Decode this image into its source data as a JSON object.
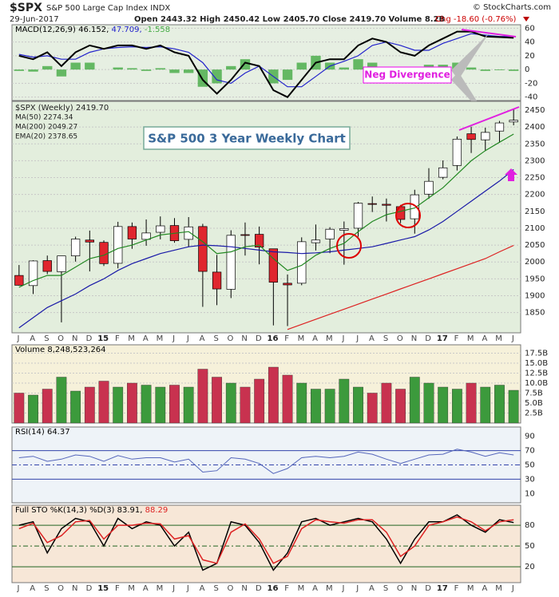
{
  "header": {
    "symbol": "$SPX",
    "name": "S&P 500 Large Cap Index INDX",
    "source": "© StockCharts.com",
    "date": "29-Jun-2017",
    "quote": "Open 2443.32 High 2450.42 Low 2405.70 Close 2419.70 Volume 8.2B",
    "change": "Chg -18.60 (-0.76%)"
  },
  "chart_data": [
    {
      "type": "macd",
      "annotation": "Neg Divergence",
      "background": "#e6efe2",
      "legend": [
        {
          "text": "MACD(12,26,9) 46.152,",
          "color": "#000000"
        },
        {
          "text": "47.709,",
          "color": "#2222cc"
        },
        {
          "text": "-1.558",
          "color": "#44aa44"
        }
      ],
      "ylim": [
        -45,
        65
      ],
      "yticks": [
        60,
        40,
        20,
        0,
        -20,
        -40
      ],
      "grid": true,
      "series": [
        {
          "color": "#000000",
          "values": [
            20,
            15,
            25,
            5,
            25,
            35,
            30,
            35,
            35,
            30,
            35,
            25,
            20,
            -15,
            -35,
            -15,
            10,
            5,
            -30,
            -40,
            -15,
            10,
            15,
            15,
            35,
            45,
            40,
            25,
            20,
            35,
            45,
            55,
            55,
            48,
            47,
            46
          ]
        },
        {
          "color": "#2222cc",
          "values": [
            22,
            18,
            20,
            15,
            15,
            25,
            30,
            32,
            33,
            32,
            33,
            30,
            25,
            10,
            -15,
            -20,
            -5,
            5,
            -10,
            -25,
            -25,
            -10,
            5,
            12,
            20,
            35,
            40,
            35,
            28,
            28,
            38,
            45,
            52,
            50,
            48,
            48
          ]
        },
        {
          "color": "#44aa44",
          "values": [
            -2,
            -3,
            5,
            -10,
            10,
            10,
            0,
            3,
            2,
            -2,
            2,
            -5,
            -5,
            -25,
            -20,
            5,
            15,
            0,
            -20,
            -15,
            10,
            20,
            10,
            3,
            15,
            10,
            0,
            -10,
            -8,
            7,
            7,
            10,
            3,
            -2,
            -1,
            -2
          ]
        }
      ]
    },
    {
      "type": "candlestick",
      "title": "S&P 500 3 Year Weekly Chart",
      "label": "$SPX (Weekly) 2419.70",
      "background": "#e3eedd",
      "up_color": "#ffffff",
      "down_color": "#e0262e",
      "categories": [
        "J",
        "A",
        "S",
        "O",
        "N",
        "D",
        "15",
        "F",
        "M",
        "A",
        "M",
        "J",
        "J",
        "A",
        "S",
        "O",
        "N",
        "D",
        "16",
        "F",
        "M",
        "A",
        "M",
        "J",
        "J",
        "A",
        "S",
        "O",
        "N",
        "D",
        "17",
        "F",
        "M",
        "A",
        "M",
        "J"
      ],
      "ylim": [
        1790,
        2476
      ],
      "yticks": [
        2450,
        2400,
        2350,
        2300,
        2250,
        2200,
        2150,
        2100,
        2050,
        2000,
        1950,
        1900,
        1850
      ],
      "grid": true,
      "open": [
        1960,
        1930,
        2004,
        1971,
        2018,
        2065,
        2058,
        1996,
        2105,
        2067,
        2088,
        2108,
        2067,
        2105,
        1970,
        1919,
        2081,
        2082,
        2039,
        1937,
        1937,
        2057,
        2068,
        2094,
        2100,
        2173,
        2171,
        2164,
        2128,
        2201,
        2251,
        2286,
        2380,
        2362,
        2388,
        2415
      ],
      "high": [
        1991,
        2005,
        2019,
        2018,
        2075,
        2093,
        2064,
        2119,
        2117,
        2126,
        2135,
        2130,
        2133,
        2113,
        2021,
        2094,
        2117,
        2105,
        2039,
        1963,
        2073,
        2111,
        2103,
        2120,
        2178,
        2194,
        2188,
        2169,
        2214,
        2278,
        2301,
        2372,
        2401,
        2398,
        2418,
        2454
      ],
      "low": [
        1930,
        1905,
        1964,
        1821,
        2001,
        1972,
        1988,
        1981,
        2039,
        2048,
        2067,
        2057,
        2044,
        1867,
        1872,
        1893,
        2019,
        1993,
        1812,
        1810,
        1931,
        2034,
        2026,
        1992,
        2075,
        2148,
        2120,
        2115,
        2084,
        2187,
        2245,
        2271,
        2323,
        2329,
        2353,
        2405
      ],
      "close": [
        1931,
        2003,
        1972,
        2018,
        2068,
        2059,
        1995,
        2105,
        2068,
        2086,
        2107,
        2063,
        2104,
        1972,
        1920,
        2079,
        2080,
        2044,
        1940,
        1932,
        2060,
        2065,
        2097,
        2099,
        2174,
        2171,
        2168,
        2126,
        2199,
        2239,
        2279,
        2364,
        2363,
        2384,
        2412,
        2420
      ],
      "series": [
        {
          "name": "MA(50) 2274.34",
          "color": "#1a1aa8",
          "values": [
            1805,
            1835,
            1865,
            1885,
            1905,
            1930,
            1950,
            1975,
            1995,
            2010,
            2025,
            2035,
            2045,
            2050,
            2048,
            2045,
            2040,
            2035,
            2030,
            2028,
            2025,
            2027,
            2030,
            2035,
            2040,
            2045,
            2055,
            2065,
            2075,
            2095,
            2120,
            2150,
            2180,
            2210,
            2240,
            2274
          ]
        },
        {
          "name": "MA(200) 2049.27",
          "color": "#dd2222",
          "values": [
            null,
            null,
            null,
            null,
            null,
            null,
            null,
            null,
            null,
            null,
            null,
            null,
            null,
            null,
            null,
            null,
            null,
            null,
            null,
            1800,
            1815,
            1830,
            1845,
            1860,
            1875,
            1890,
            1905,
            1920,
            1935,
            1950,
            1965,
            1980,
            1995,
            2010,
            2030,
            2049
          ]
        },
        {
          "name": "EMA(20) 2378.65",
          "color": "#228822",
          "values": [
            1925,
            1945,
            1960,
            1960,
            1985,
            2010,
            2020,
            2040,
            2050,
            2065,
            2080,
            2085,
            2090,
            2060,
            2025,
            2030,
            2045,
            2050,
            2010,
            1975,
            1990,
            2020,
            2040,
            2055,
            2090,
            2120,
            2140,
            2150,
            2160,
            2190,
            2220,
            2260,
            2300,
            2330,
            2355,
            2379
          ]
        }
      ]
    },
    {
      "type": "volume",
      "background": "#f6f1da",
      "up_color": "#3c9a3c",
      "down_color": "#c8324f",
      "legend": [
        {
          "text": "Volume 8,248,523,264",
          "color": "#000000"
        }
      ],
      "ylim": [
        0,
        19.6
      ],
      "grid": true,
      "yticks": [
        {
          "value": 17.5,
          "label": "17.5B"
        },
        {
          "value": 15,
          "label": "15.0B"
        },
        {
          "value": 12.5,
          "label": "12.5B"
        },
        {
          "value": 10,
          "label": "10.0B"
        },
        {
          "value": 7.5,
          "label": "7.5B"
        },
        {
          "value": 5,
          "label": "5.0B"
        },
        {
          "value": 2.5,
          "label": "2.5B"
        }
      ],
      "values": [
        7.5,
        7.0,
        8.5,
        11.5,
        8.0,
        9.0,
        10.5,
        9.0,
        10.0,
        9.5,
        9.0,
        9.5,
        9.0,
        13.5,
        11.5,
        10.0,
        9.0,
        11.0,
        14.0,
        12.0,
        10.0,
        8.5,
        8.5,
        11.0,
        9.0,
        7.5,
        10.0,
        8.5,
        11.5,
        10.0,
        9.0,
        8.5,
        10.0,
        9.0,
        9.5,
        8.2
      ]
    },
    {
      "type": "rsi",
      "background": "#eef3f8",
      "band_color": "#3344aa",
      "legend": [
        {
          "text": "RSI(14) 64.37",
          "color": "#000000"
        }
      ],
      "ylim": [
        -3,
        103
      ],
      "yticks": [
        90,
        70,
        50,
        30,
        10
      ],
      "bands": [
        70,
        30
      ],
      "midline": 50,
      "series": [
        {
          "color": "#5566bb",
          "values": [
            60,
            62,
            55,
            58,
            64,
            62,
            55,
            63,
            58,
            60,
            60,
            54,
            58,
            40,
            42,
            60,
            58,
            52,
            38,
            45,
            60,
            62,
            60,
            62,
            68,
            65,
            58,
            52,
            58,
            64,
            65,
            72,
            68,
            62,
            67,
            64
          ]
        }
      ]
    },
    {
      "type": "sto",
      "background": "#f7e7d7",
      "band_color": "#226622",
      "legend": [
        {
          "text": "Full STO %K(14,3) %D(3) 83.91,",
          "color": "#000000"
        },
        {
          "text": "88.29",
          "color": "#dd2222"
        }
      ],
      "categories": [
        "J",
        "A",
        "S",
        "O",
        "N",
        "D",
        "15",
        "F",
        "M",
        "A",
        "M",
        "J",
        "J",
        "A",
        "S",
        "O",
        "N",
        "D",
        "16",
        "F",
        "M",
        "A",
        "M",
        "J",
        "J",
        "A",
        "S",
        "O",
        "N",
        "D",
        "17",
        "F",
        "M",
        "A",
        "M",
        "J"
      ],
      "ylim": [
        -3,
        109
      ],
      "yticks": [
        80,
        50,
        20
      ],
      "bands": [
        80,
        20
      ],
      "midline": 50,
      "series": [
        {
          "color": "#000000",
          "values": [
            80,
            85,
            40,
            75,
            90,
            85,
            50,
            90,
            75,
            85,
            80,
            50,
            70,
            15,
            25,
            85,
            80,
            55,
            15,
            40,
            85,
            90,
            80,
            85,
            90,
            85,
            60,
            25,
            60,
            85,
            85,
            95,
            80,
            70,
            88,
            84
          ]
        },
        {
          "color": "#dd2222",
          "values": [
            75,
            83,
            55,
            65,
            85,
            87,
            60,
            80,
            80,
            83,
            82,
            60,
            65,
            30,
            25,
            70,
            82,
            60,
            25,
            35,
            75,
            88,
            85,
            83,
            88,
            88,
            70,
            35,
            50,
            80,
            85,
            92,
            85,
            72,
            85,
            88
          ]
        }
      ]
    }
  ]
}
